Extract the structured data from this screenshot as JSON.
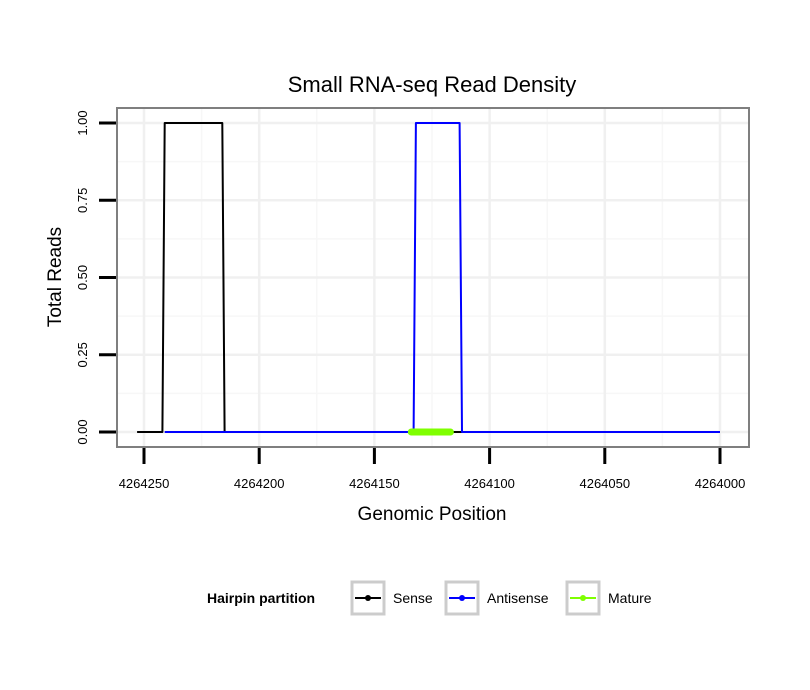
{
  "chart_data": {
    "type": "line",
    "title": "Small RNA-seq Read Density",
    "xlabel": "Genomic Position",
    "ylabel": "Total Reads",
    "x_reversed": true,
    "xlim": [
      4264253,
      4264000
    ],
    "ylim": [
      0,
      1.0
    ],
    "x_ticks": [
      4264250,
      4264200,
      4264150,
      4264100,
      4264050,
      4264000
    ],
    "x_tick_labels": [
      "4264250",
      "4264200",
      "4264150",
      "4264100",
      "4264050",
      "4264000"
    ],
    "y_ticks": [
      0,
      0.25,
      0.5,
      0.75,
      1.0
    ],
    "y_tick_labels": [
      "0.00",
      "0.25",
      "0.50",
      "0.75",
      "1.00"
    ],
    "grid": true,
    "legend": {
      "title": "Hairpin partition",
      "position": "bottom",
      "entries": [
        {
          "label": "Sense",
          "color": "#000000"
        },
        {
          "label": "Antisense",
          "color": "#0000ff"
        },
        {
          "label": "Mature",
          "color": "#7fff00"
        }
      ]
    },
    "series": [
      {
        "name": "Sense",
        "color": "#000000",
        "x": [
          4264253,
          4264242,
          4264241,
          4264216,
          4264215,
          4264000
        ],
        "y": [
          0,
          0,
          1,
          1,
          0,
          0
        ]
      },
      {
        "name": "Antisense",
        "color": "#0000ff",
        "x": [
          4264241,
          4264215,
          4264133,
          4264132,
          4264113,
          4264112,
          4264000
        ],
        "y": [
          0,
          0,
          0,
          1,
          1,
          0,
          0
        ]
      },
      {
        "name": "Mature",
        "color": "#7fff00",
        "x": [
          4264134,
          4264117
        ],
        "y": [
          0,
          0
        ]
      }
    ]
  }
}
